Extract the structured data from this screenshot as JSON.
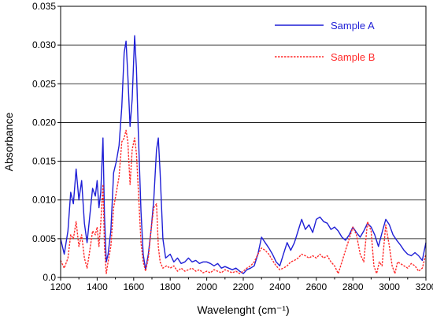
{
  "chart_data": {
    "type": "line",
    "title": "",
    "xlabel": "Wavelenght (cm⁻¹)",
    "ylabel": "Absorbance",
    "xlim": [
      1200,
      3200
    ],
    "ylim": [
      0.0,
      0.035
    ],
    "x_ticks": [
      1200,
      1400,
      1600,
      1800,
      2000,
      2200,
      2400,
      2600,
      2800,
      3000,
      3200
    ],
    "x_tick_labels": [
      "1200",
      "1400",
      "1600",
      "1800",
      "2000",
      "2200",
      "2400",
      "2600",
      "2800",
      "3000",
      "3200"
    ],
    "y_ticks": [
      0.0,
      0.005,
      0.01,
      0.015,
      0.02,
      0.025,
      0.03,
      0.035
    ],
    "y_tick_labels": [
      "0.0",
      "0.005",
      "0.010",
      "0.015",
      "0.020",
      "0.025",
      "0.030",
      "0.035"
    ],
    "grid": "horizontal",
    "legend": "top-right",
    "series": [
      {
        "name": "Sample A",
        "color": "#1f1fd6",
        "style": "solid",
        "points": [
          [
            1200,
            0.005
          ],
          [
            1220,
            0.003
          ],
          [
            1240,
            0.006
          ],
          [
            1255,
            0.011
          ],
          [
            1270,
            0.0095
          ],
          [
            1285,
            0.014
          ],
          [
            1300,
            0.01
          ],
          [
            1315,
            0.0125
          ],
          [
            1330,
            0.007
          ],
          [
            1345,
            0.0045
          ],
          [
            1360,
            0.008
          ],
          [
            1375,
            0.0115
          ],
          [
            1390,
            0.0105
          ],
          [
            1400,
            0.0125
          ],
          [
            1410,
            0.009
          ],
          [
            1420,
            0.011
          ],
          [
            1432,
            0.018
          ],
          [
            1440,
            0.008
          ],
          [
            1450,
            0.002
          ],
          [
            1460,
            0.003
          ],
          [
            1475,
            0.006
          ],
          [
            1490,
            0.0135
          ],
          [
            1505,
            0.015
          ],
          [
            1520,
            0.017
          ],
          [
            1535,
            0.022
          ],
          [
            1548,
            0.029
          ],
          [
            1558,
            0.0305
          ],
          [
            1568,
            0.026
          ],
          [
            1580,
            0.0195
          ],
          [
            1592,
            0.023
          ],
          [
            1605,
            0.0312
          ],
          [
            1615,
            0.027
          ],
          [
            1625,
            0.019
          ],
          [
            1640,
            0.0085
          ],
          [
            1652,
            0.003
          ],
          [
            1665,
            0.001
          ],
          [
            1680,
            0.003
          ],
          [
            1695,
            0.006
          ],
          [
            1710,
            0.01
          ],
          [
            1725,
            0.0165
          ],
          [
            1735,
            0.018
          ],
          [
            1745,
            0.0135
          ],
          [
            1760,
            0.005
          ],
          [
            1775,
            0.0025
          ],
          [
            1800,
            0.003
          ],
          [
            1820,
            0.002
          ],
          [
            1840,
            0.0025
          ],
          [
            1860,
            0.0018
          ],
          [
            1880,
            0.002
          ],
          [
            1900,
            0.0025
          ],
          [
            1920,
            0.002
          ],
          [
            1940,
            0.0022
          ],
          [
            1960,
            0.0018
          ],
          [
            1980,
            0.002
          ],
          [
            2000,
            0.002
          ],
          [
            2020,
            0.0018
          ],
          [
            2040,
            0.0015
          ],
          [
            2060,
            0.0018
          ],
          [
            2080,
            0.0012
          ],
          [
            2100,
            0.0014
          ],
          [
            2120,
            0.0012
          ],
          [
            2140,
            0.001
          ],
          [
            2160,
            0.0012
          ],
          [
            2180,
            0.0008
          ],
          [
            2200,
            0.0005
          ],
          [
            2220,
            0.001
          ],
          [
            2240,
            0.0012
          ],
          [
            2260,
            0.0015
          ],
          [
            2280,
            0.003
          ],
          [
            2300,
            0.0052
          ],
          [
            2320,
            0.0045
          ],
          [
            2340,
            0.0038
          ],
          [
            2360,
            0.003
          ],
          [
            2380,
            0.002
          ],
          [
            2400,
            0.0015
          ],
          [
            2420,
            0.003
          ],
          [
            2440,
            0.0045
          ],
          [
            2460,
            0.0035
          ],
          [
            2480,
            0.0045
          ],
          [
            2500,
            0.006
          ],
          [
            2520,
            0.0075
          ],
          [
            2540,
            0.0062
          ],
          [
            2560,
            0.0068
          ],
          [
            2580,
            0.0058
          ],
          [
            2600,
            0.0075
          ],
          [
            2620,
            0.0078
          ],
          [
            2640,
            0.0072
          ],
          [
            2660,
            0.007
          ],
          [
            2680,
            0.0062
          ],
          [
            2700,
            0.0065
          ],
          [
            2720,
            0.006
          ],
          [
            2740,
            0.0052
          ],
          [
            2760,
            0.0048
          ],
          [
            2780,
            0.0055
          ],
          [
            2800,
            0.0065
          ],
          [
            2820,
            0.0058
          ],
          [
            2840,
            0.0052
          ],
          [
            2860,
            0.006
          ],
          [
            2880,
            0.007
          ],
          [
            2900,
            0.0065
          ],
          [
            2920,
            0.0055
          ],
          [
            2940,
            0.004
          ],
          [
            2960,
            0.0058
          ],
          [
            2980,
            0.0075
          ],
          [
            3000,
            0.0068
          ],
          [
            3020,
            0.0055
          ],
          [
            3040,
            0.0048
          ],
          [
            3060,
            0.0042
          ],
          [
            3080,
            0.0035
          ],
          [
            3100,
            0.003
          ],
          [
            3120,
            0.0028
          ],
          [
            3140,
            0.0032
          ],
          [
            3160,
            0.0028
          ],
          [
            3180,
            0.0022
          ],
          [
            3200,
            0.0045
          ]
        ]
      },
      {
        "name": "Sample B",
        "color": "#ff2a2a",
        "style": "dashed",
        "points": [
          [
            1200,
            0.0022
          ],
          [
            1220,
            0.0012
          ],
          [
            1240,
            0.0025
          ],
          [
            1255,
            0.0055
          ],
          [
            1270,
            0.005
          ],
          [
            1285,
            0.0072
          ],
          [
            1300,
            0.004
          ],
          [
            1315,
            0.0055
          ],
          [
            1330,
            0.0025
          ],
          [
            1345,
            0.0012
          ],
          [
            1360,
            0.0035
          ],
          [
            1375,
            0.006
          ],
          [
            1390,
            0.0055
          ],
          [
            1400,
            0.0065
          ],
          [
            1410,
            0.004
          ],
          [
            1420,
            0.007
          ],
          [
            1432,
            0.012
          ],
          [
            1440,
            0.004
          ],
          [
            1450,
            0.0005
          ],
          [
            1460,
            0.002
          ],
          [
            1475,
            0.004
          ],
          [
            1490,
            0.009
          ],
          [
            1505,
            0.011
          ],
          [
            1520,
            0.013
          ],
          [
            1535,
            0.0175
          ],
          [
            1548,
            0.018
          ],
          [
            1558,
            0.019
          ],
          [
            1568,
            0.0175
          ],
          [
            1580,
            0.012
          ],
          [
            1592,
            0.0165
          ],
          [
            1605,
            0.018
          ],
          [
            1615,
            0.016
          ],
          [
            1625,
            0.0115
          ],
          [
            1640,
            0.0045
          ],
          [
            1652,
            0.002
          ],
          [
            1665,
            0.0008
          ],
          [
            1680,
            0.0025
          ],
          [
            1695,
            0.006
          ],
          [
            1710,
            0.009
          ],
          [
            1725,
            0.0095
          ],
          [
            1735,
            0.004
          ],
          [
            1745,
            0.002
          ],
          [
            1760,
            0.0012
          ],
          [
            1780,
            0.0015
          ],
          [
            1800,
            0.0012
          ],
          [
            1820,
            0.0015
          ],
          [
            1840,
            0.0008
          ],
          [
            1860,
            0.0012
          ],
          [
            1880,
            0.0008
          ],
          [
            1900,
            0.001
          ],
          [
            1920,
            0.0012
          ],
          [
            1940,
            0.0008
          ],
          [
            1960,
            0.001
          ],
          [
            1980,
            0.0006
          ],
          [
            2000,
            0.0008
          ],
          [
            2020,
            0.0006
          ],
          [
            2040,
            0.001
          ],
          [
            2060,
            0.0008
          ],
          [
            2080,
            0.0006
          ],
          [
            2100,
            0.001
          ],
          [
            2120,
            0.0008
          ],
          [
            2140,
            0.0006
          ],
          [
            2160,
            0.0008
          ],
          [
            2180,
            0.0005
          ],
          [
            2200,
            0.0008
          ],
          [
            2220,
            0.0012
          ],
          [
            2240,
            0.0015
          ],
          [
            2260,
            0.002
          ],
          [
            2280,
            0.003
          ],
          [
            2300,
            0.0038
          ],
          [
            2320,
            0.0035
          ],
          [
            2340,
            0.003
          ],
          [
            2360,
            0.0022
          ],
          [
            2380,
            0.0015
          ],
          [
            2400,
            0.001
          ],
          [
            2420,
            0.0012
          ],
          [
            2440,
            0.0015
          ],
          [
            2460,
            0.002
          ],
          [
            2480,
            0.0022
          ],
          [
            2500,
            0.0025
          ],
          [
            2520,
            0.003
          ],
          [
            2540,
            0.0028
          ],
          [
            2560,
            0.0025
          ],
          [
            2580,
            0.0028
          ],
          [
            2600,
            0.0025
          ],
          [
            2620,
            0.003
          ],
          [
            2640,
            0.0025
          ],
          [
            2660,
            0.0028
          ],
          [
            2680,
            0.002
          ],
          [
            2700,
            0.0015
          ],
          [
            2720,
            0.0005
          ],
          [
            2740,
            0.002
          ],
          [
            2760,
            0.0035
          ],
          [
            2780,
            0.005
          ],
          [
            2800,
            0.0065
          ],
          [
            2820,
            0.0055
          ],
          [
            2840,
            0.003
          ],
          [
            2860,
            0.002
          ],
          [
            2880,
            0.0072
          ],
          [
            2900,
            0.006
          ],
          [
            2915,
            0.0015
          ],
          [
            2930,
            0.0005
          ],
          [
            2945,
            0.002
          ],
          [
            2960,
            0.0015
          ],
          [
            2980,
            0.0068
          ],
          [
            3000,
            0.004
          ],
          [
            3015,
            0.0015
          ],
          [
            3030,
            0.0005
          ],
          [
            3045,
            0.002
          ],
          [
            3060,
            0.0018
          ],
          [
            3080,
            0.0015
          ],
          [
            3100,
            0.0012
          ],
          [
            3120,
            0.0018
          ],
          [
            3140,
            0.0015
          ],
          [
            3160,
            0.0008
          ],
          [
            3180,
            0.0012
          ],
          [
            3200,
            0.003
          ]
        ]
      }
    ]
  }
}
